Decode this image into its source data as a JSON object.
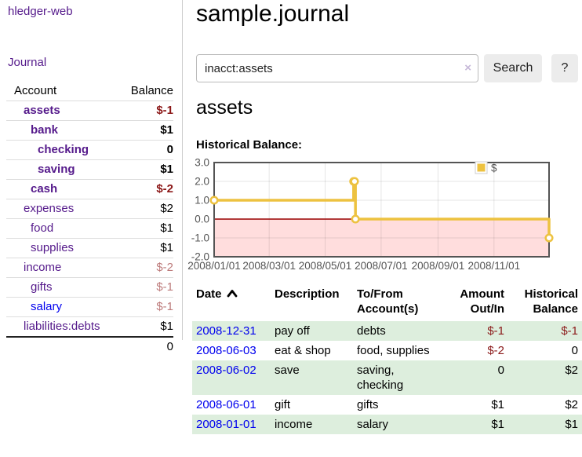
{
  "app": {
    "brand": "hledger-web",
    "journal_label": "Journal"
  },
  "sidebar": {
    "col_account": "Account",
    "col_balance": "Balance",
    "accounts": [
      {
        "name": "assets",
        "indent": 0,
        "bold": true,
        "balance": "$-1",
        "neg": "strong"
      },
      {
        "name": "bank",
        "indent": 1,
        "bold": true,
        "balance": "$1"
      },
      {
        "name": "checking",
        "indent": 2,
        "bold": true,
        "balance": "0"
      },
      {
        "name": "saving",
        "indent": 2,
        "bold": true,
        "balance": "$1"
      },
      {
        "name": "cash",
        "indent": 1,
        "bold": true,
        "balance": "$-2",
        "neg": "strong"
      },
      {
        "name": "expenses",
        "indent": 0,
        "bold": false,
        "balance": "$2"
      },
      {
        "name": "food",
        "indent": 1,
        "bold": false,
        "balance": "$1"
      },
      {
        "name": "supplies",
        "indent": 1,
        "bold": false,
        "balance": "$1"
      },
      {
        "name": "income",
        "indent": 0,
        "bold": false,
        "balance": "$-2",
        "neg": "soft"
      },
      {
        "name": "gifts",
        "indent": 1,
        "bold": false,
        "balance": "$-1",
        "neg": "soft"
      },
      {
        "name": "salary",
        "indent": 1,
        "bold": false,
        "balance": "$-1",
        "neg": "soft",
        "link": "blue"
      },
      {
        "name": "liabilities:debts",
        "indent": 0,
        "bold": false,
        "balance": "$1"
      }
    ],
    "total": "0"
  },
  "header": {
    "title": "sample.journal"
  },
  "search": {
    "value": "inacct:assets",
    "clear_icon": "×",
    "button_label": "Search",
    "help_label": "?"
  },
  "account_page": {
    "title": "assets",
    "chart_label": "Historical Balance:"
  },
  "chart_data": {
    "type": "line",
    "step": true,
    "title": "Historical Balance:",
    "series": [
      {
        "name": "$",
        "color": "#edc240",
        "points": [
          [
            "2008-01-01",
            1
          ],
          [
            "2008-06-01",
            2
          ],
          [
            "2008-06-02",
            2
          ],
          [
            "2008-06-03",
            0
          ],
          [
            "2008-12-31",
            -1
          ]
        ]
      }
    ],
    "x_range": [
      "2008-01-01",
      "2008-12-31"
    ],
    "ylim": [
      -2,
      3
    ],
    "y_ticks": [
      {
        "label": "3.0",
        "value": 3
      },
      {
        "label": "2.0",
        "value": 2
      },
      {
        "label": "1.0",
        "value": 1
      },
      {
        "label": "0.0",
        "value": 0
      },
      {
        "label": "-1.0",
        "value": -1
      },
      {
        "label": "-2.0",
        "value": -2
      }
    ],
    "x_ticks": [
      {
        "label": "2008/01/01",
        "date": "2008-01-01"
      },
      {
        "label": "2008/03/01",
        "date": "2008-03-01"
      },
      {
        "label": "2008/05/01",
        "date": "2008-05-01"
      },
      {
        "label": "2008/07/01",
        "date": "2008-07-01"
      },
      {
        "label": "2008/09/01",
        "date": "2008-09-01"
      },
      {
        "label": "2008/11/01",
        "date": "2008-11-01"
      }
    ],
    "grid": true,
    "legend": {
      "label": "$",
      "position": "top-right"
    },
    "negative_region_color": "#ffdddd",
    "zero_line_color": "#990000",
    "border_color": "#545454",
    "tick_text_color": "#545454"
  },
  "register": {
    "columns": [
      {
        "label": "Date",
        "align": "left",
        "sort": "ascending"
      },
      {
        "label": "Description",
        "align": "left"
      },
      {
        "label": "To/From Account(s)",
        "align": "left"
      },
      {
        "label": "Amount Out/In",
        "align": "right"
      },
      {
        "label": "Historical Balance",
        "align": "right"
      }
    ],
    "rows": [
      {
        "date": "2008-12-31",
        "description": "pay off",
        "accounts": "debts",
        "amount": "$-1",
        "amount_negative": true,
        "balance": "$-1",
        "balance_negative": true
      },
      {
        "date": "2008-06-03",
        "description": "eat & shop",
        "accounts": "food, supplies",
        "amount": "$-2",
        "amount_negative": true,
        "balance": "0",
        "balance_negative": false
      },
      {
        "date": "2008-06-02",
        "description": "save",
        "accounts": "saving, checking",
        "amount": "0",
        "amount_negative": false,
        "balance": "$2",
        "balance_negative": false
      },
      {
        "date": "2008-06-01",
        "description": "gift",
        "accounts": "gifts",
        "amount": "$1",
        "amount_negative": false,
        "balance": "$2",
        "balance_negative": false
      },
      {
        "date": "2008-01-01",
        "description": "income",
        "accounts": "salary",
        "amount": "$1",
        "amount_negative": false,
        "balance": "$1",
        "balance_negative": false
      }
    ]
  },
  "colors": {
    "link_purple": "#551a8b",
    "link_blue": "#0000ee",
    "negative_strong": "#8b1717",
    "negative_soft": "#bd7b7b",
    "row_green": "#ddeedd",
    "series_gold": "#edc240"
  }
}
